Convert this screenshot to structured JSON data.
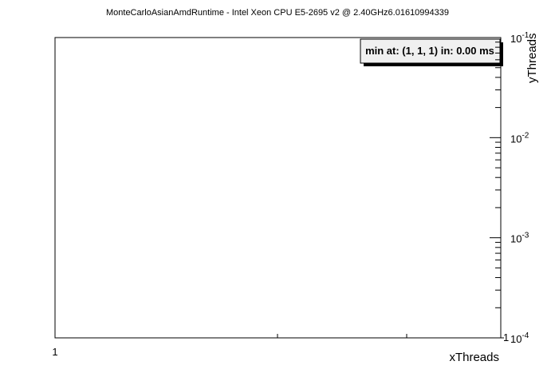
{
  "chart_data": {
    "type": "heatmap",
    "title": "MonteCarloAsianAmdRuntime - Intel Xeon CPU E5-2695 v2 @ 2.40GHz6.01610994339",
    "x_label": "xThreads",
    "y_label": "yThreads",
    "annotation": "min at: (1, 1, 1) in: 0.00 ms",
    "xticks": [
      1
    ],
    "yticks": [
      1
    ],
    "zlim": [
      0.0001,
      0.1
    ],
    "zlog": true,
    "zticks": [
      {
        "value": 0.1,
        "label": "10^-1"
      },
      {
        "value": 0.01,
        "label": "10^-2"
      },
      {
        "value": 0.001,
        "label": "10^-3"
      },
      {
        "value": 0.0001,
        "label": "10^-4"
      }
    ]
  }
}
